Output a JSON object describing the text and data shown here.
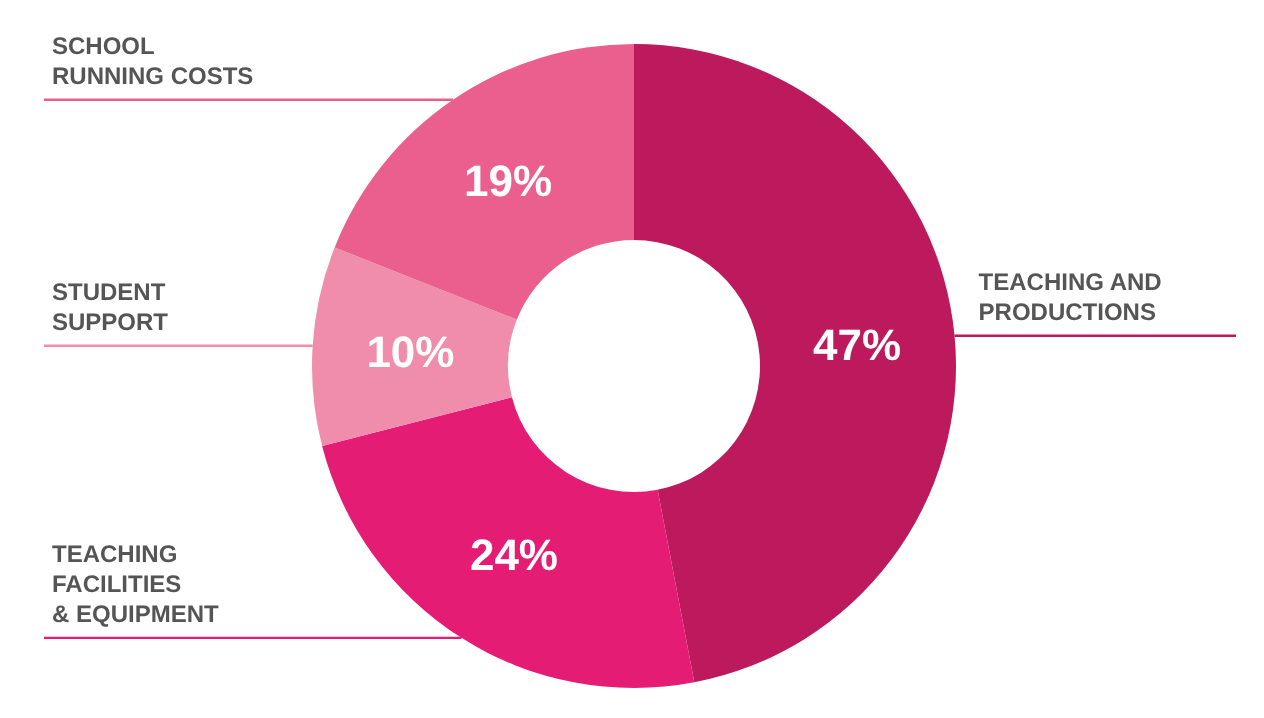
{
  "chart_data": {
    "type": "donut",
    "categories": [
      "TEACHING AND\nPRODUCTIONS",
      "TEACHING\nFACILITIES\n& EQUIPMENT",
      "STUDENT\nSUPPORT",
      "SCHOOL\nRUNNING COSTS"
    ],
    "values": [
      47,
      24,
      10,
      19
    ],
    "value_labels": [
      "47%",
      "24%",
      "10%",
      "19%"
    ],
    "colors": [
      "#bc1a5c",
      "#e51c74",
      "#f08dac",
      "#eb5f8f"
    ]
  }
}
